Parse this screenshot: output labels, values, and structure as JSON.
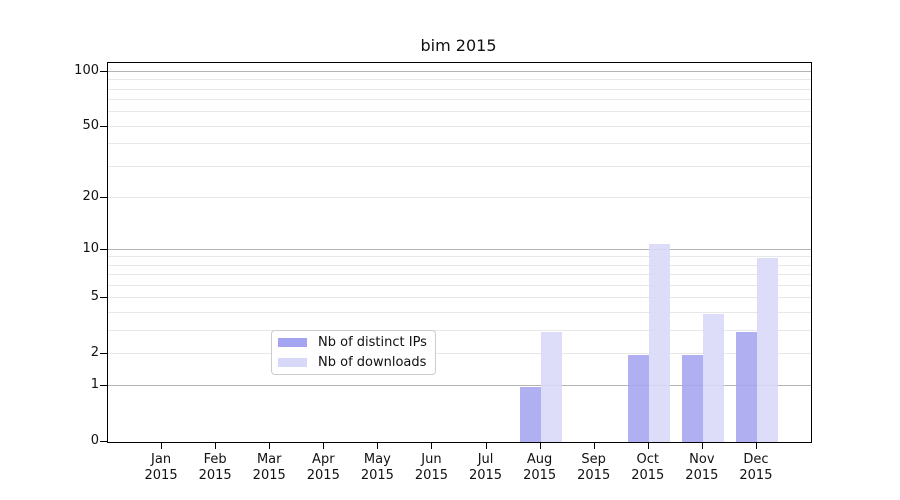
{
  "title": "bim 2015",
  "legend": {
    "items": [
      {
        "label": "Nb of distinct IPs",
        "color": "#a4a4f0"
      },
      {
        "label": "Nb of downloads",
        "color": "#d8d8f8"
      }
    ]
  },
  "chart_data": {
    "type": "bar",
    "title": "bim 2015",
    "categories": [
      "Jan",
      "Feb",
      "Mar",
      "Apr",
      "May",
      "Jun",
      "Jul",
      "Aug",
      "Sep",
      "Oct",
      "Nov",
      "Dec"
    ],
    "category_year": "2015",
    "series": [
      {
        "name": "Nb of distinct IPs",
        "color": "#a4a4f0",
        "values": [
          0,
          0,
          0,
          0,
          0,
          0,
          0,
          1,
          0,
          2,
          2,
          3
        ]
      },
      {
        "name": "Nb of downloads",
        "color": "#d8d8f8",
        "values": [
          0,
          0,
          0,
          0,
          0,
          0,
          0,
          3,
          0,
          11,
          4,
          9
        ]
      }
    ],
    "xlabel": "",
    "ylabel": "",
    "yscale": "log1p",
    "ylim": [
      0,
      112
    ],
    "y_ticks": [
      0,
      1,
      2,
      5,
      10,
      20,
      50,
      100
    ],
    "y_gridlines_major": [
      1,
      10,
      100
    ],
    "y_gridlines_minor": [
      2,
      3,
      4,
      5,
      6,
      7,
      8,
      9,
      20,
      30,
      40,
      50,
      60,
      70,
      80,
      90
    ],
    "grid": "horizontal-only",
    "legend_position": "lower-center"
  },
  "colors": {
    "grid_major": "#b3b3b3",
    "grid_minor": "#e8e8e8",
    "axis": "#000000",
    "background": "#ffffff"
  }
}
